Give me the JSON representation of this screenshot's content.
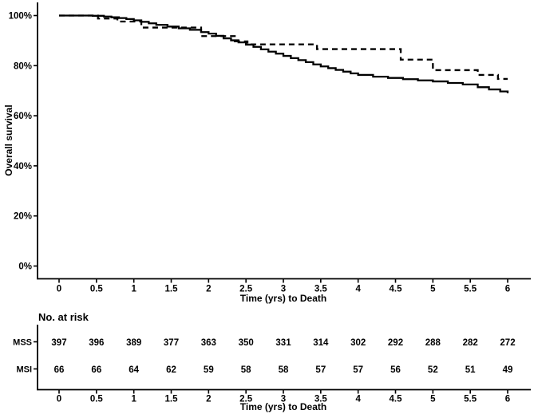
{
  "figure": {
    "ylabel": "Overall survival",
    "xlabel": "Time (yrs) to Death",
    "risk_title": "No. at risk",
    "line_color": "#000000",
    "background": "#ffffff"
  },
  "chart_data": {
    "type": "line",
    "subtype": "kaplan-meier-step",
    "title": "",
    "xlabel": "Time (yrs) to Death",
    "ylabel": "Overall survival",
    "xlim": [
      0,
      6
    ],
    "ylim": [
      0,
      100
    ],
    "x_ticks": [
      0,
      0.5,
      1,
      1.5,
      2,
      2.5,
      3,
      3.5,
      4,
      4.5,
      5,
      5.5,
      6
    ],
    "y_ticks": [
      0,
      20,
      40,
      60,
      80,
      100
    ],
    "y_tick_suffix": "%",
    "grid": false,
    "legend": "none",
    "series": [
      {
        "name": "MSS",
        "line_style": "solid",
        "color": "#000000",
        "points": [
          [
            0,
            100
          ],
          [
            0.45,
            99.9
          ],
          [
            0.6,
            99.6
          ],
          [
            0.7,
            99.3
          ],
          [
            0.8,
            99.0
          ],
          [
            0.9,
            98.6
          ],
          [
            1.0,
            98.1
          ],
          [
            1.1,
            97.5
          ],
          [
            1.2,
            96.9
          ],
          [
            1.3,
            96.3
          ],
          [
            1.45,
            95.6
          ],
          [
            1.6,
            94.9
          ],
          [
            1.75,
            94.3
          ],
          [
            1.9,
            93.4
          ],
          [
            2.0,
            92.8
          ],
          [
            2.1,
            91.9
          ],
          [
            2.2,
            90.9
          ],
          [
            2.3,
            90.1
          ],
          [
            2.4,
            89.3
          ],
          [
            2.5,
            88.4
          ],
          [
            2.6,
            87.5
          ],
          [
            2.7,
            86.5
          ],
          [
            2.8,
            85.6
          ],
          [
            2.9,
            84.8
          ],
          [
            3.0,
            83.9
          ],
          [
            3.1,
            83.0
          ],
          [
            3.2,
            82.2
          ],
          [
            3.3,
            81.4
          ],
          [
            3.4,
            80.5
          ],
          [
            3.5,
            79.7
          ],
          [
            3.6,
            79.0
          ],
          [
            3.7,
            78.3
          ],
          [
            3.8,
            77.6
          ],
          [
            3.9,
            76.9
          ],
          [
            4.0,
            76.3
          ],
          [
            4.2,
            75.6
          ],
          [
            4.4,
            75.1
          ],
          [
            4.6,
            74.6
          ],
          [
            4.8,
            74.1
          ],
          [
            5.0,
            73.7
          ],
          [
            5.2,
            73.1
          ],
          [
            5.4,
            72.5
          ],
          [
            5.6,
            71.4
          ],
          [
            5.75,
            70.5
          ],
          [
            5.9,
            69.7
          ],
          [
            6.0,
            69.0
          ]
        ]
      },
      {
        "name": "MSI",
        "line_style": "dashed",
        "color": "#000000",
        "points": [
          [
            0,
            100
          ],
          [
            0.52,
            98.8
          ],
          [
            0.78,
            97.6
          ],
          [
            1.1,
            95.2
          ],
          [
            1.9,
            91.8
          ],
          [
            2.35,
            89.7
          ],
          [
            2.52,
            88.5
          ],
          [
            3.45,
            86.6
          ],
          [
            4.57,
            82.4
          ],
          [
            5.0,
            78.2
          ],
          [
            5.6,
            76.3
          ],
          [
            5.87,
            74.7
          ]
        ]
      }
    ],
    "risk_table": {
      "title": "No. at risk",
      "time": [
        0,
        0.5,
        1,
        1.5,
        2,
        2.5,
        3,
        3.5,
        4,
        4.5,
        5,
        5.5,
        6
      ],
      "rows": [
        {
          "label": "MSS",
          "counts": [
            397,
            396,
            389,
            377,
            363,
            350,
            331,
            314,
            302,
            292,
            288,
            282,
            272
          ]
        },
        {
          "label": "MSI",
          "counts": [
            66,
            66,
            64,
            62,
            59,
            58,
            58,
            57,
            57,
            56,
            52,
            51,
            49
          ]
        }
      ]
    }
  }
}
